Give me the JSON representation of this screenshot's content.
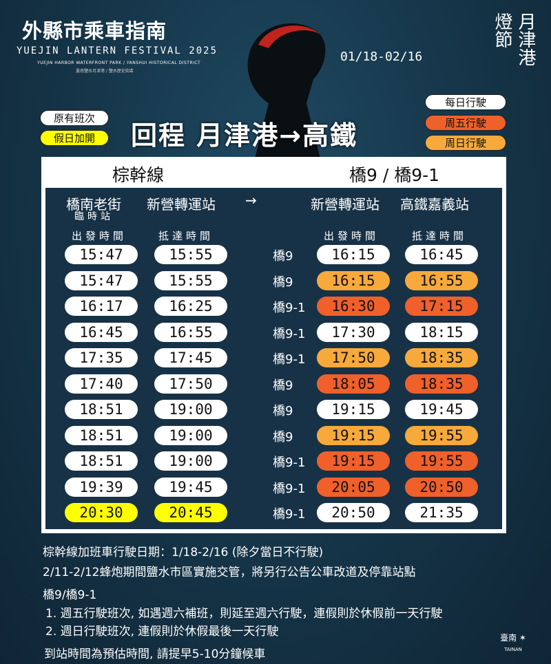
{
  "header": {
    "title": "外縣市乘車指南",
    "festival": "YUEJIN LANTERN FESTIVAL 2025",
    "subtitle_en": "YUEJIN HARBOR WATERFRONT PARK / YANSHUI HISTORICAL DISTRICT",
    "subtitle_zh": "臺南鹽水月津港 / 鹽水歷史街區",
    "dates": "01/18-02/16",
    "logo_text": "月津港燈節"
  },
  "legend_left": [
    {
      "label": "原有班次",
      "color": "#ffffff"
    },
    {
      "label": "假日加開",
      "color": "#ffff00"
    }
  ],
  "legend_right": [
    {
      "label": "每日行駛",
      "color": "#ffffff"
    },
    {
      "label": "周五行駛",
      "color": "#f0602a"
    },
    {
      "label": "周日行駛",
      "color": "#f7a93b"
    }
  ],
  "heading": "回程  月津港→高鐵",
  "table": {
    "left_title": "棕幹線",
    "right_title": "橋9 / 橋9-1",
    "stations": [
      "橋南老街",
      "新營轉運站",
      "→",
      "新營轉運站",
      "高鐵嘉義站"
    ],
    "temp_stop": "臨時站",
    "col_labels": [
      "出發時間",
      "抵達時間",
      "出發時間",
      "抵達時間"
    ],
    "rows": [
      {
        "dep": "15:47",
        "arr": "15:55",
        "left_color": "#ffffff",
        "route": "橋9",
        "dep2": "16:15",
        "arr2": "16:45",
        "right_color": "#ffffff"
      },
      {
        "dep": "15:47",
        "arr": "15:55",
        "left_color": "#ffffff",
        "route": "橋9",
        "dep2": "16:15",
        "arr2": "16:55",
        "right_color": "#f7a93b"
      },
      {
        "dep": "16:17",
        "arr": "16:25",
        "left_color": "#ffffff",
        "route": "橋9-1",
        "dep2": "16:30",
        "arr2": "17:15",
        "right_color": "#f0602a"
      },
      {
        "dep": "16:45",
        "arr": "16:55",
        "left_color": "#ffffff",
        "route": "橋9-1",
        "dep2": "17:30",
        "arr2": "18:15",
        "right_color": "#ffffff"
      },
      {
        "dep": "17:35",
        "arr": "17:45",
        "left_color": "#ffffff",
        "route": "橋9-1",
        "dep2": "17:50",
        "arr2": "18:35",
        "right_color": "#f7a93b"
      },
      {
        "dep": "17:40",
        "arr": "17:50",
        "left_color": "#ffffff",
        "route": "橋9",
        "dep2": "18:05",
        "arr2": "18:35",
        "right_color": "#f0602a"
      },
      {
        "dep": "18:51",
        "arr": "19:00",
        "left_color": "#ffffff",
        "route": "橋9",
        "dep2": "19:15",
        "arr2": "19:45",
        "right_color": "#ffffff"
      },
      {
        "dep": "18:51",
        "arr": "19:00",
        "left_color": "#ffffff",
        "route": "橋9",
        "dep2": "19:15",
        "arr2": "19:55",
        "right_color": "#f7a93b"
      },
      {
        "dep": "18:51",
        "arr": "19:00",
        "left_color": "#ffffff",
        "route": "橋9-1",
        "dep2": "19:15",
        "arr2": "19:55",
        "right_color": "#f0602a"
      },
      {
        "dep": "19:39",
        "arr": "19:45",
        "left_color": "#ffffff",
        "route": "橋9-1",
        "dep2": "20:05",
        "arr2": "20:50",
        "right_color": "#f0602a"
      },
      {
        "dep": "20:30",
        "arr": "20:45",
        "left_color": "#ffff00",
        "route": "橋9-1",
        "dep2": "20:50",
        "arr2": "21:35",
        "right_color": "#ffffff"
      }
    ]
  },
  "notes": [
    "棕幹線加班車行駛日期：1/18-2/16 (除夕當日不行駛)",
    "2/11-2/12蜂炮期間鹽水市區實施交管，將另行公告公車改道及停靠站點",
    "橋9/橋9-1",
    "1. 週五行駛班次,  如遇週六補班，則延至週六行駛，連假則於休假前一天行駛",
    "2. 週日行駛班次,  連假則於休假最後一天行駛",
    "到站時間為預估時間, 請提早5-10分鐘候車"
  ],
  "footer_logo": "臺南 TAINAN"
}
